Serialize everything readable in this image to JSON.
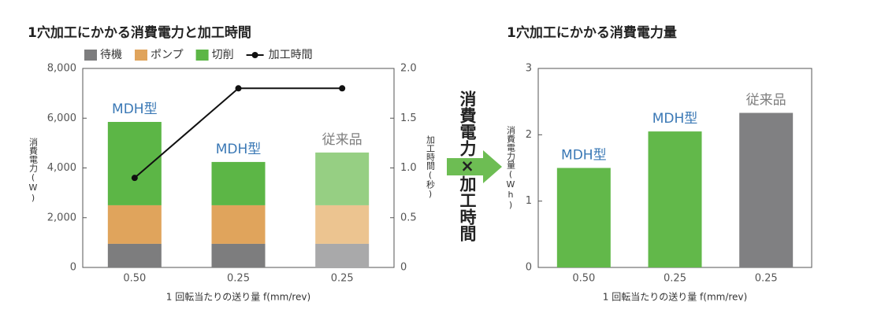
{
  "chart_data": [
    {
      "type": "bar",
      "stacked": true,
      "title": "1穴加工にかかる消費電力と加工時間",
      "categories": [
        "0.50",
        "0.25",
        "0.25"
      ],
      "xlabel": "1 回転当たりの送り量 f(mm/rev)",
      "ylabel": "消費電力(W)",
      "y2label": "加工時間(秒)",
      "ylim": [
        0,
        8000
      ],
      "yticks": [
        0,
        {
          "value": 2000,
          "label": "2,000"
        },
        {
          "value": 4000,
          "label": "4,000"
        },
        {
          "value": 6000,
          "label": "6,000"
        },
        {
          "value": 8000,
          "label": "8,000"
        }
      ],
      "y2lim": [
        0,
        2
      ],
      "y2ticks": [
        0,
        0.5,
        {
          "value": 1,
          "label": "1.0"
        },
        1.5,
        {
          "value": 2,
          "label": "2.0"
        }
      ],
      "series": [
        {
          "name": "待機",
          "color": "#7d7d7e",
          "colors": [
            "#7d7d7e",
            "#7d7d7e",
            "#a9a9aa"
          ],
          "values": [
            950,
            950,
            950
          ]
        },
        {
          "name": "ポンプ",
          "color": "#e0a45c",
          "colors": [
            "#e0a45c",
            "#e0a45c",
            "#ecc490"
          ],
          "values": [
            1550,
            1550,
            1550
          ]
        },
        {
          "name": "切削",
          "color": "#5cb646",
          "colors": [
            "#5cb646",
            "#5cb646",
            "#96cf83"
          ],
          "values": [
            3350,
            1740,
            2120
          ]
        },
        {
          "name": "加工時間",
          "type": "line",
          "axis": "y2",
          "color": "#111111",
          "values": [
            0.9,
            1.8,
            1.8
          ]
        }
      ],
      "bar_labels": [
        "MDH型",
        "MDH型",
        "従来品"
      ],
      "bar_label_colors": [
        "#3a78b5",
        "#3a78b5",
        "#808080"
      ],
      "legend": "top"
    },
    {
      "type": "bar",
      "title": "1穴加工にかかる消費電力量",
      "categories": [
        "0.50",
        "0.25",
        "0.25"
      ],
      "xlabel": "1 回転当たりの送り量 f(mm/rev)",
      "ylabel": "消費電力量(Wh)",
      "ylim": [
        0,
        3
      ],
      "yticks": [
        0,
        1,
        2,
        3
      ],
      "values": [
        1.5,
        2.05,
        2.33
      ],
      "colors": [
        "#62b84a",
        "#62b84a",
        "#808082"
      ],
      "bar_labels": [
        "MDH型",
        "MDH型",
        "従来品"
      ],
      "bar_label_colors": [
        "#3a78b5",
        "#3a78b5",
        "#808080"
      ]
    }
  ],
  "center_text": "消費電力×加工時間"
}
